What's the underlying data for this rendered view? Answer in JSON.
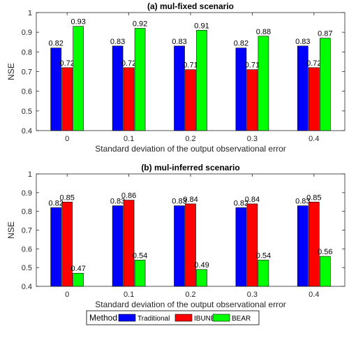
{
  "chart_data": [
    {
      "type": "bar",
      "title": "(a) mul-fixed scenario",
      "xlabel": "Standard deviation of the output observational error",
      "ylabel": "NSE",
      "ylim": [
        0.4,
        1.0
      ],
      "yticks": [
        "0.4",
        "0.5",
        "0.6",
        "0.7",
        "0.8",
        "0.9",
        "1"
      ],
      "categories": [
        "0",
        "0.1",
        "0.2",
        "0.3",
        "0.4"
      ],
      "grid": false,
      "series": [
        {
          "name": "Traditional",
          "color": "#0000ff",
          "values": [
            0.82,
            0.83,
            0.83,
            0.82,
            0.83
          ],
          "labels": [
            "0.82",
            "0.83",
            "0.83",
            "0.82",
            "0.83"
          ]
        },
        {
          "name": "IBUNE",
          "color": "#ff0000",
          "values": [
            0.72,
            0.72,
            0.71,
            0.71,
            0.72
          ],
          "labels": [
            "0.72",
            "0.72",
            "0.71",
            "0.71",
            "0.72"
          ]
        },
        {
          "name": "BEAR",
          "color": "#00ff00",
          "values": [
            0.93,
            0.92,
            0.91,
            0.88,
            0.87
          ],
          "labels": [
            "0.93",
            "0.92",
            "0.91",
            "0.88",
            "0.87"
          ]
        }
      ]
    },
    {
      "type": "bar",
      "title": "(b) mul-inferred scenario",
      "xlabel": "Standard deviation of the output observational error",
      "ylabel": "NSE",
      "ylim": [
        0.4,
        1.0
      ],
      "yticks": [
        "0.4",
        "0.5",
        "0.6",
        "0.7",
        "0.8",
        "0.9",
        "1"
      ],
      "categories": [
        "0",
        "0.1",
        "0.2",
        "0.3",
        "0.4"
      ],
      "grid": false,
      "series": [
        {
          "name": "Traditional",
          "color": "#0000ff",
          "values": [
            0.82,
            0.83,
            0.83,
            0.82,
            0.83
          ],
          "labels": [
            "0.82",
            "0.83",
            "0.83",
            "0.82",
            "0.83"
          ]
        },
        {
          "name": "IBUNE",
          "color": "#ff0000",
          "values": [
            0.85,
            0.86,
            0.84,
            0.84,
            0.85
          ],
          "labels": [
            "0.85",
            "0.86",
            "0.84",
            "0.84",
            "0.85"
          ]
        },
        {
          "name": "BEAR",
          "color": "#00ff00",
          "values": [
            0.47,
            0.54,
            0.49,
            0.54,
            0.56
          ],
          "labels": [
            "0.47",
            "0.54",
            "0.49",
            "0.54",
            "0.56"
          ]
        }
      ]
    }
  ],
  "legend": {
    "title": "Method",
    "placement": "bottom",
    "items": [
      {
        "label": "Traditional",
        "color": "#0000ff"
      },
      {
        "label": "IBUNE",
        "color": "#ff0000"
      },
      {
        "label": "BEAR",
        "color": "#00ff00"
      }
    ]
  }
}
